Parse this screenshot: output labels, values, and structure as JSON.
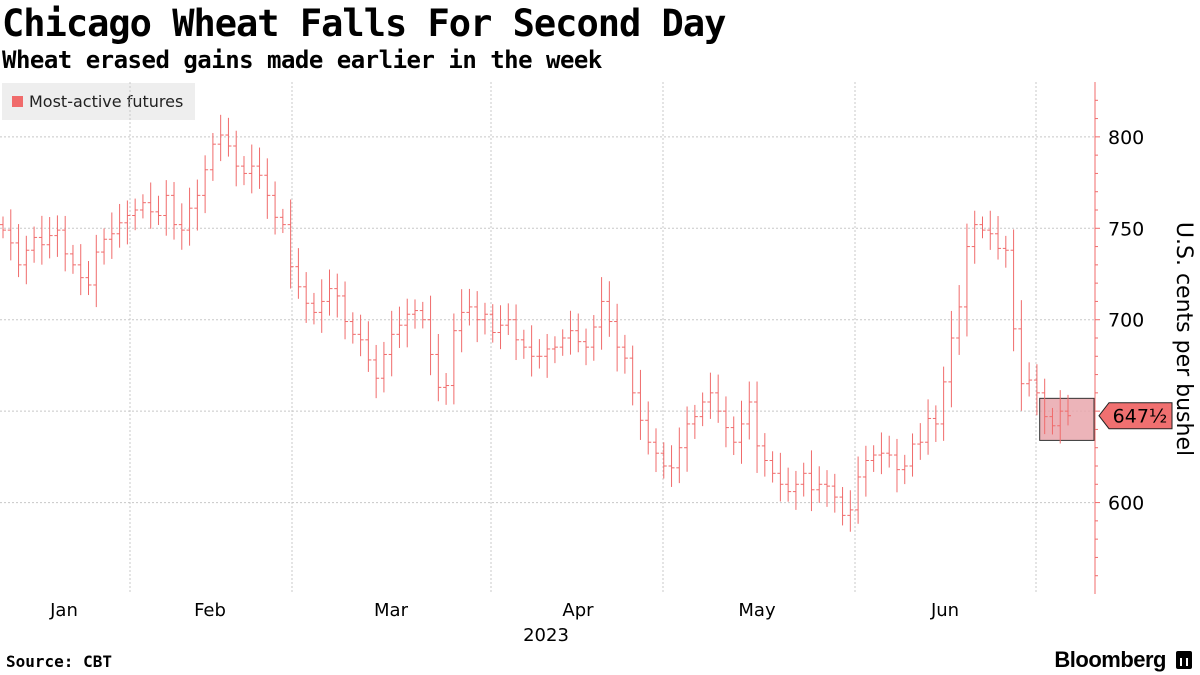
{
  "title": "Chicago Wheat Falls For Second Day",
  "subtitle": "Wheat erased gains made earlier in the week",
  "legend": {
    "label": "Most-active futures"
  },
  "source": "Source: CBT",
  "brand": "Bloomberg",
  "colors": {
    "series": "#f06b6b",
    "legend_swatch": "#f06b6b",
    "callout_fill": "#f07070",
    "highlight_fill": "#e9a7ad",
    "grid": "#c8c8c8"
  },
  "chart_data": {
    "type": "bar",
    "style": "ohlc",
    "ylabel": "U.S. cents per bushel",
    "ylim": [
      550,
      830
    ],
    "yticks": [
      600,
      650,
      700,
      750,
      800
    ],
    "y_tick_labels": [
      "600",
      "",
      "700",
      "750",
      "800"
    ],
    "xlabel": "2023",
    "x_tick_labels": [
      "Jan",
      "Feb",
      "Mar",
      "Apr",
      "May",
      "Jun"
    ],
    "grid": true,
    "legend_position": "top-left",
    "last_value_label": "647½",
    "last_value": 647.5,
    "series": [
      {
        "name": "Most-active futures",
        "close": [
          749,
          742,
          730,
          738,
          745,
          741,
          746,
          749,
          736,
          730,
          723,
          719,
          737,
          744,
          747,
          753,
          757,
          760,
          764,
          759,
          757,
          768,
          752,
          749,
          761,
          768,
          782,
          796,
          801,
          795,
          784,
          780,
          784,
          779,
          768,
          756,
          752,
          729,
          718,
          709,
          704,
          710,
          717,
          713,
          699,
          692,
          689,
          678,
          668,
          681,
          692,
          697,
          703,
          705,
          700,
          681,
          663,
          664,
          694,
          704,
          707,
          700,
          703,
          693,
          697,
          700,
          689,
          685,
          680,
          680,
          684,
          685,
          690,
          694,
          688,
          685,
          696,
          710,
          699,
          685,
          679,
          660,
          645,
          633,
          627,
          620,
          619,
          630,
          643,
          647,
          655,
          660,
          650,
          641,
          633,
          643,
          655,
          631,
          623,
          616,
          610,
          606,
          610,
          616,
          607,
          610,
          609,
          603,
          593,
          596,
          614,
          623,
          626,
          627,
          626,
          618,
          620,
          632,
          633,
          646,
          643,
          666,
          690,
          707,
          740,
          752,
          749,
          747,
          739,
          738,
          695,
          665,
          667,
          660,
          647,
          642,
          650,
          647.5
        ]
      }
    ]
  }
}
